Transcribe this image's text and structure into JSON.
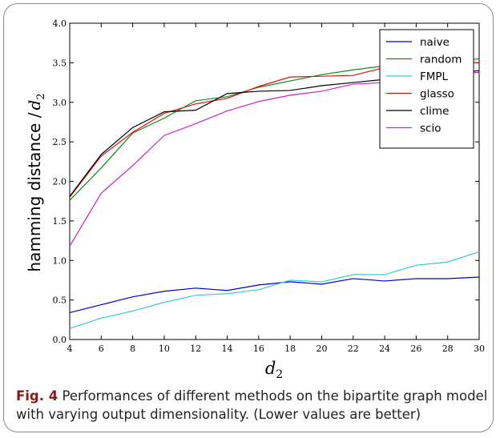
{
  "chart_data": {
    "type": "line",
    "x": [
      4,
      6,
      8,
      10,
      12,
      14,
      16,
      18,
      20,
      22,
      24,
      26,
      28,
      30
    ],
    "xlim": [
      4,
      30
    ],
    "ylim": [
      0.0,
      4.0
    ],
    "xticks": [
      4,
      6,
      8,
      10,
      12,
      14,
      16,
      18,
      20,
      22,
      24,
      26,
      28,
      30
    ],
    "yticks": [
      0.0,
      0.5,
      1.0,
      1.5,
      2.0,
      2.5,
      3.0,
      3.5,
      4.0
    ],
    "xlabel": {
      "base": "d",
      "sub": "2"
    },
    "ylabel": {
      "text": "hamming distance /",
      "var": "d",
      "sub": "2"
    },
    "grid": false,
    "legend_position": "top-right",
    "series": [
      {
        "name": "naive",
        "color": "#0000cc",
        "values": [
          0.34,
          0.44,
          0.54,
          0.61,
          0.65,
          0.62,
          0.69,
          0.73,
          0.7,
          0.77,
          0.74,
          0.77,
          0.77,
          0.79
        ]
      },
      {
        "name": "random",
        "color": "#118811",
        "values": [
          1.76,
          2.17,
          2.61,
          2.8,
          3.02,
          3.07,
          3.19,
          3.27,
          3.35,
          3.41,
          3.46,
          3.5,
          3.5,
          3.55
        ]
      },
      {
        "name": "FMPL",
        "color": "#33cccc",
        "values": [
          0.14,
          0.27,
          0.36,
          0.47,
          0.56,
          0.58,
          0.63,
          0.75,
          0.73,
          0.82,
          0.82,
          0.94,
          0.98,
          1.11
        ]
      },
      {
        "name": "glasso",
        "color": "#dd1111",
        "values": [
          1.8,
          2.32,
          2.62,
          2.86,
          2.98,
          3.05,
          3.2,
          3.32,
          3.33,
          3.34,
          3.44,
          3.5,
          3.52,
          3.5
        ]
      },
      {
        "name": "clime",
        "color": "#000000",
        "values": [
          1.81,
          2.34,
          2.68,
          2.88,
          2.9,
          3.11,
          3.14,
          3.15,
          3.21,
          3.25,
          3.29,
          3.32,
          3.37,
          3.4
        ]
      },
      {
        "name": "scio",
        "color": "#cc22cc",
        "values": [
          1.18,
          1.85,
          2.2,
          2.58,
          2.73,
          2.89,
          3.01,
          3.09,
          3.14,
          3.23,
          3.25,
          3.31,
          3.35,
          3.38
        ]
      }
    ]
  },
  "caption": {
    "label": "Fig. 4",
    "text": "Performances of different methods on the bipartite graph model with varying output dimensionality. (Lower values are better)"
  }
}
